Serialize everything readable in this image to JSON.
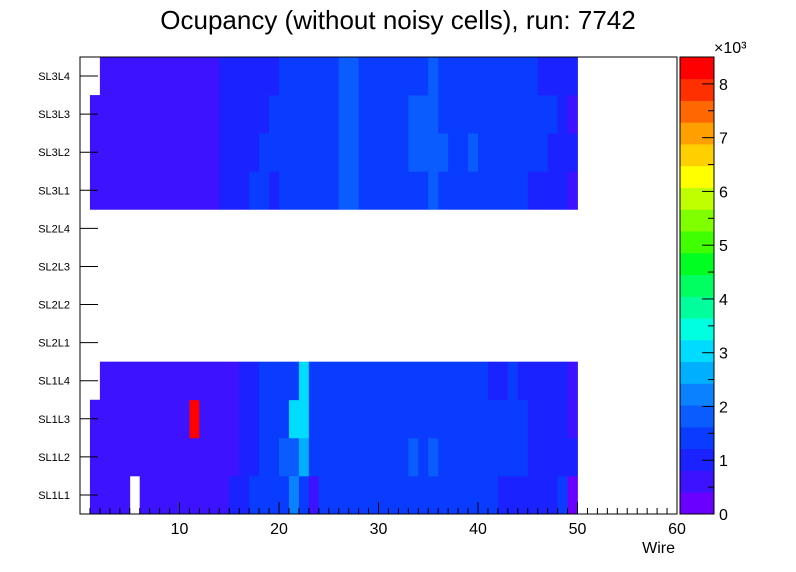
{
  "chart_data": {
    "type": "heatmap",
    "title": "Ocupancy (without noisy cells), run: 7742",
    "xlabel": "Wire",
    "ylabel": "",
    "xlim": [
      0,
      60
    ],
    "x_ticks": [
      "10",
      "20",
      "30",
      "40",
      "50",
      "60"
    ],
    "y_categories": [
      "SL1L1",
      "SL1L2",
      "SL1L3",
      "SL1L4",
      "SL2L1",
      "SL2L2",
      "SL2L3",
      "SL2L4",
      "SL3L1",
      "SL3L2",
      "SL3L3",
      "SL3L4"
    ],
    "colorbar": {
      "range": [
        0,
        8.5
      ],
      "exponent_label": "×10³",
      "ticks": [
        "0",
        "1",
        "2",
        "3",
        "4",
        "5",
        "6",
        "7",
        "8"
      ],
      "palette": [
        "#6a00ff",
        "#3d12ff",
        "#1a22ff",
        "#0a3cff",
        "#0a5cff",
        "#0a82ff",
        "#00b0ff",
        "#00dcff",
        "#00ffe0",
        "#00ff9c",
        "#00ff60",
        "#00ff20",
        "#40ff00",
        "#80ff00",
        "#c0ff00",
        "#ffff00",
        "#ffd000",
        "#ffa000",
        "#ff6800",
        "#ff3000",
        "#ff0000"
      ]
    },
    "units": "thousands of hits per cell",
    "rows": {
      "SL1L1": [
        [
          1,
          4,
          0.6
        ],
        [
          5,
          5,
          null
        ],
        [
          6,
          14,
          0.6
        ],
        [
          15,
          16,
          0.85
        ],
        [
          17,
          20,
          1.6
        ],
        [
          21,
          21,
          2.4
        ],
        [
          22,
          22,
          1.6
        ],
        [
          23,
          23,
          0.6
        ],
        [
          24,
          41,
          1.6
        ],
        [
          42,
          47,
          1.0
        ],
        [
          48,
          48,
          1.5
        ],
        [
          49,
          49,
          0.3
        ]
      ],
      "SL1L2": [
        [
          1,
          15,
          0.6
        ],
        [
          16,
          17,
          0.85
        ],
        [
          18,
          19,
          1.6
        ],
        [
          20,
          21,
          2.0
        ],
        [
          22,
          22,
          2.7
        ],
        [
          23,
          32,
          1.6
        ],
        [
          33,
          33,
          2.0
        ],
        [
          34,
          34,
          1.6
        ],
        [
          35,
          35,
          2.0
        ],
        [
          36,
          44,
          1.6
        ],
        [
          45,
          49,
          1.1
        ]
      ],
      "SL1L3": [
        [
          1,
          10,
          0.6
        ],
        [
          11,
          11,
          8.4
        ],
        [
          12,
          15,
          0.6
        ],
        [
          16,
          17,
          0.85
        ],
        [
          18,
          20,
          1.6
        ],
        [
          21,
          22,
          2.9
        ],
        [
          23,
          44,
          1.6
        ],
        [
          45,
          48,
          1.1
        ],
        [
          49,
          49,
          0.6
        ]
      ],
      "SL1L4": [
        [
          1,
          1,
          null
        ],
        [
          2,
          15,
          0.6
        ],
        [
          16,
          17,
          0.85
        ],
        [
          18,
          21,
          1.6
        ],
        [
          22,
          22,
          2.9
        ],
        [
          23,
          40,
          1.6
        ],
        [
          41,
          42,
          1.1
        ],
        [
          43,
          43,
          1.6
        ],
        [
          44,
          48,
          1.1
        ],
        [
          49,
          49,
          0.6
        ]
      ],
      "SL2L1": [],
      "SL2L2": [],
      "SL2L3": [],
      "SL2L4": [],
      "SL3L1": [
        [
          1,
          13,
          0.6
        ],
        [
          14,
          15,
          0.85
        ],
        [
          16,
          16,
          1.1
        ],
        [
          17,
          18,
          1.6
        ],
        [
          19,
          19,
          1.1
        ],
        [
          20,
          25,
          1.6
        ],
        [
          26,
          27,
          2.0
        ],
        [
          28,
          34,
          1.6
        ],
        [
          35,
          35,
          2.0
        ],
        [
          36,
          44,
          1.6
        ],
        [
          45,
          48,
          1.1
        ],
        [
          49,
          49,
          0.6
        ]
      ],
      "SL3L2": [
        [
          1,
          13,
          0.6
        ],
        [
          14,
          16,
          0.85
        ],
        [
          17,
          17,
          1.1
        ],
        [
          18,
          25,
          1.6
        ],
        [
          26,
          27,
          2.0
        ],
        [
          28,
          32,
          1.6
        ],
        [
          33,
          36,
          2.0
        ],
        [
          37,
          38,
          1.6
        ],
        [
          39,
          39,
          2.0
        ],
        [
          40,
          46,
          1.6
        ],
        [
          47,
          49,
          1.1
        ]
      ],
      "SL3L3": [
        [
          1,
          13,
          0.6
        ],
        [
          14,
          15,
          0.85
        ],
        [
          16,
          16,
          1.1
        ],
        [
          17,
          18,
          0.85
        ],
        [
          19,
          25,
          1.6
        ],
        [
          26,
          27,
          2.0
        ],
        [
          28,
          32,
          1.6
        ],
        [
          33,
          35,
          2.0
        ],
        [
          36,
          47,
          1.6
        ],
        [
          48,
          48,
          1.1
        ],
        [
          49,
          49,
          0.6
        ]
      ],
      "SL3L4": [
        [
          1,
          1,
          null
        ],
        [
          2,
          13,
          0.6
        ],
        [
          14,
          16,
          0.85
        ],
        [
          17,
          19,
          1.1
        ],
        [
          20,
          25,
          1.6
        ],
        [
          26,
          27,
          2.0
        ],
        [
          28,
          34,
          1.6
        ],
        [
          35,
          35,
          2.0
        ],
        [
          36,
          45,
          1.6
        ],
        [
          46,
          49,
          1.1
        ]
      ]
    }
  }
}
